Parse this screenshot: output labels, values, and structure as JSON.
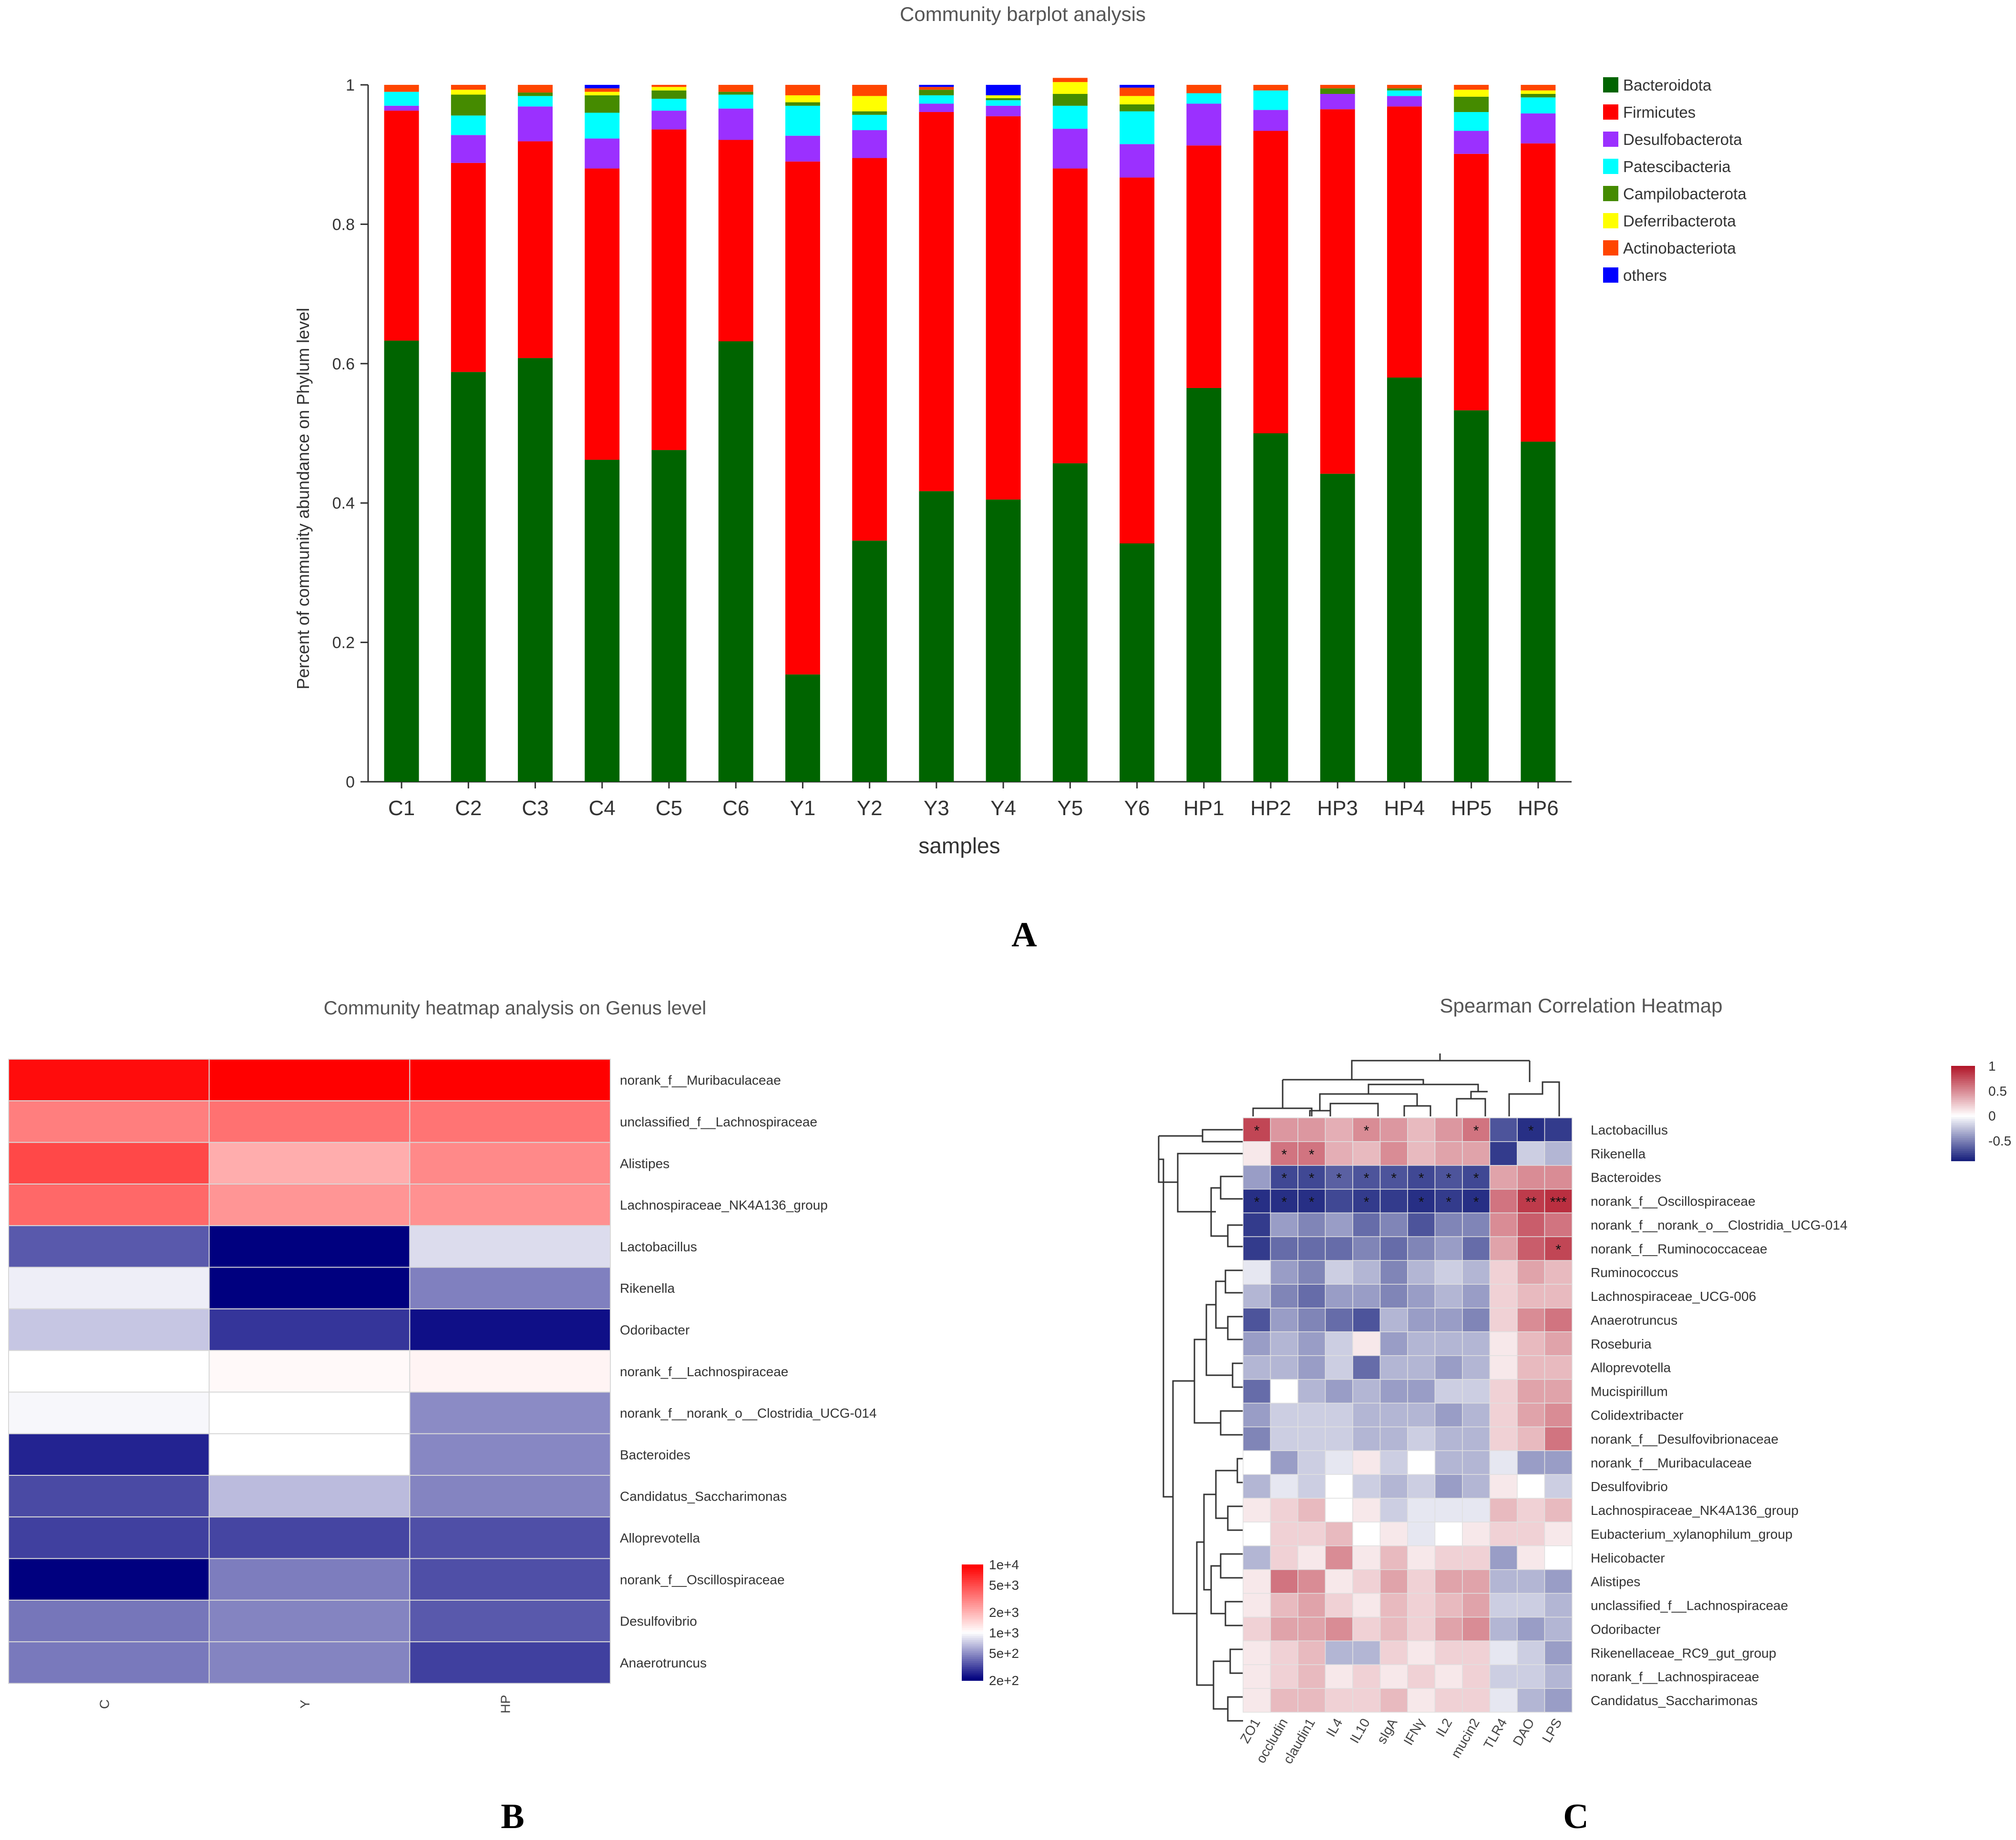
{
  "figure": {
    "panel_labels": [
      "A",
      "B",
      "C"
    ]
  },
  "chart_data": [
    {
      "type": "bar",
      "stacked": true,
      "title": "Community barplot analysis",
      "xlabel": "samples",
      "ylabel": "Percent of community abundance on Phylum level",
      "ylim": [
        0,
        1
      ],
      "yticks": [
        "0",
        "0.2",
        "0.4",
        "0.6",
        "0.8",
        "1"
      ],
      "legend_position": "right",
      "categories": [
        "C1",
        "C2",
        "C3",
        "C4",
        "C5",
        "C6",
        "Y1",
        "Y2",
        "Y3",
        "Y4",
        "Y5",
        "Y6",
        "HP1",
        "HP2",
        "HP3",
        "HP4",
        "HP5",
        "HP6"
      ],
      "series": [
        {
          "name": "Bacteroidota",
          "color": "#006400",
          "values": [
            0.633,
            0.588,
            0.608,
            0.462,
            0.476,
            0.632,
            0.154,
            0.346,
            0.417,
            0.405,
            0.457,
            0.342,
            0.565,
            0.5,
            0.442,
            0.58,
            0.533,
            0.488
          ]
        },
        {
          "name": "Firmicutes",
          "color": "#ff0000",
          "values": [
            0.33,
            0.3,
            0.311,
            0.418,
            0.46,
            0.289,
            0.736,
            0.549,
            0.544,
            0.55,
            0.423,
            0.525,
            0.348,
            0.434,
            0.523,
            0.389,
            0.368,
            0.428
          ]
        },
        {
          "name": "Desulfobacterota",
          "color": "#9b30ff",
          "values": [
            0.007,
            0.04,
            0.05,
            0.043,
            0.027,
            0.045,
            0.037,
            0.04,
            0.012,
            0.015,
            0.057,
            0.048,
            0.06,
            0.03,
            0.022,
            0.015,
            0.033,
            0.043
          ]
        },
        {
          "name": "Patescibacteria",
          "color": "#00ffff",
          "values": [
            0.02,
            0.028,
            0.015,
            0.037,
            0.017,
            0.02,
            0.043,
            0.022,
            0.012,
            0.008,
            0.033,
            0.047,
            0.015,
            0.028,
            0.0,
            0.008,
            0.027,
            0.023
          ]
        },
        {
          "name": "Campilobacterota",
          "color": "#458b00",
          "values": [
            0.0,
            0.03,
            0.005,
            0.025,
            0.012,
            0.004,
            0.005,
            0.005,
            0.008,
            0.003,
            0.017,
            0.01,
            0.0,
            0.0,
            0.008,
            0.003,
            0.022,
            0.005
          ]
        },
        {
          "name": "Deferribacterota",
          "color": "#ffff00",
          "values": [
            0.0,
            0.007,
            0.0,
            0.005,
            0.005,
            0.0,
            0.01,
            0.022,
            0.0,
            0.004,
            0.017,
            0.012,
            0.0,
            0.0,
            0.0,
            0.0,
            0.01,
            0.005
          ]
        },
        {
          "name": "Actinobacteriota",
          "color": "#ff4500",
          "values": [
            0.01,
            0.007,
            0.011,
            0.005,
            0.003,
            0.01,
            0.015,
            0.016,
            0.004,
            0.0,
            0.006,
            0.012,
            0.012,
            0.008,
            0.005,
            0.005,
            0.007,
            0.008
          ]
        },
        {
          "name": "others",
          "color": "#0000ff",
          "values": [
            0.0,
            0.0,
            0.0,
            0.005,
            0.0,
            0.0,
            0.0,
            0.0,
            0.003,
            0.015,
            0.0,
            0.004,
            0.0,
            0.0,
            0.0,
            0.0,
            0.0,
            0.0
          ]
        }
      ]
    },
    {
      "type": "heatmap",
      "title": "Community heatmap analysis on Genus level",
      "columns": [
        "C",
        "Y",
        "HP"
      ],
      "rows": [
        "norank_f__Muribaculaceae",
        "unclassified_f__Lachnospiraceae",
        "Alistipes",
        "Lachnospiraceae_NK4A136_group",
        "Lactobacillus",
        "Rikenella",
        "Odoribacter",
        "norank_f__Lachnospiraceae",
        "norank_f__norank_o__Clostridia_UCG-014",
        "Bacteroides",
        "Candidatus_Saccharimonas",
        "Alloprevotella",
        "norank_f__Oscillospiraceae",
        "Desulfovibrio",
        "Anaerotruncus"
      ],
      "scale": "log",
      "values": [
        [
          9000,
          10000,
          10000
        ],
        [
          3200,
          3600,
          3500
        ],
        [
          5200,
          2100,
          2900
        ],
        [
          3900,
          2600,
          2700
        ],
        [
          350,
          200,
          800
        ],
        [
          900,
          190,
          450
        ],
        [
          700,
          280,
          220
        ],
        [
          1000,
          1060,
          1100
        ],
        [
          950,
          1000,
          480
        ],
        [
          250,
          1000,
          470
        ],
        [
          320,
          650,
          460
        ],
        [
          300,
          310,
          330
        ],
        [
          190,
          440,
          330
        ],
        [
          420,
          460,
          350
        ],
        [
          430,
          460,
          300
        ]
      ],
      "colorbar": {
        "labels": [
          "1e+4",
          "5e+3",
          "2e+3",
          "1e+3",
          "5e+2",
          "2e+2"
        ],
        "colors": [
          "#ff0000",
          "#ffffff",
          "#00007f"
        ]
      }
    },
    {
      "type": "heatmap",
      "title": "Spearman Correlation Heatmap",
      "columns": [
        "ZO1",
        "occludin",
        "claudin1",
        "IL4",
        "IL10",
        "sIgA",
        "IFNγ",
        "IL2",
        "mucin2",
        "TLR4",
        "DAO",
        "LPS"
      ],
      "rows": [
        "Lactobacillus",
        "Rikenella",
        "Bacteroides",
        "norank_f__Oscillospiraceae",
        "norank_f__norank_o__Clostridia_UCG-014",
        "norank_f__Ruminococcaceae",
        "Ruminococcus",
        "Lachnospiraceae_UCG-006",
        "Anaerotruncus",
        "Roseburia",
        "Alloprevotella",
        "Mucispirillum",
        "Colidextribacter",
        "norank_f__Desulfovibrionaceae",
        "norank_f__Muribaculaceae",
        "Desulfovibrio",
        "Lachnospiraceae_NK4A136_group",
        "Eubacterium_xylanophilum_group",
        "Helicobacter",
        "Alistipes",
        "unclassified_f__Lachnospiraceae",
        "Odoribacter",
        "Rikenellaceae_RC9_gut_group",
        "norank_f__Lachnospiraceae",
        "Candidatus_Saccharimonas"
      ],
      "values": [
        [
          0.8,
          0.45,
          0.45,
          0.35,
          0.5,
          0.45,
          0.3,
          0.45,
          0.6,
          -0.7,
          -0.85,
          -0.8
        ],
        [
          0.1,
          0.6,
          0.6,
          0.35,
          0.3,
          0.5,
          0.3,
          0.4,
          0.4,
          -0.8,
          -0.2,
          -0.3
        ],
        [
          -0.4,
          -0.75,
          -0.75,
          -0.65,
          -0.7,
          -0.7,
          -0.75,
          -0.7,
          -0.75,
          0.4,
          0.5,
          0.5
        ],
        [
          -0.85,
          -0.85,
          -0.85,
          -0.75,
          -0.8,
          -0.8,
          -0.85,
          -0.8,
          -0.85,
          0.6,
          0.85,
          0.9
        ],
        [
          -0.8,
          -0.4,
          -0.5,
          -0.4,
          -0.6,
          -0.5,
          -0.7,
          -0.5,
          -0.5,
          0.5,
          0.7,
          0.6
        ],
        [
          -0.8,
          -0.6,
          -0.6,
          -0.6,
          -0.5,
          -0.6,
          -0.5,
          -0.4,
          -0.6,
          0.4,
          0.7,
          0.8
        ],
        [
          -0.1,
          -0.4,
          -0.5,
          -0.2,
          -0.3,
          -0.5,
          -0.3,
          -0.2,
          -0.3,
          0.2,
          0.4,
          0.3
        ],
        [
          -0.3,
          -0.5,
          -0.6,
          -0.4,
          -0.4,
          -0.5,
          -0.4,
          -0.3,
          -0.4,
          0.2,
          0.3,
          0.3
        ],
        [
          -0.7,
          -0.4,
          -0.5,
          -0.6,
          -0.7,
          -0.3,
          -0.4,
          -0.4,
          -0.5,
          0.2,
          0.5,
          0.6
        ],
        [
          -0.4,
          -0.3,
          -0.4,
          -0.2,
          0.1,
          -0.4,
          -0.3,
          -0.3,
          -0.3,
          0.1,
          0.3,
          0.4
        ],
        [
          -0.3,
          -0.3,
          -0.4,
          -0.2,
          -0.6,
          -0.3,
          -0.3,
          -0.4,
          -0.3,
          0.1,
          0.3,
          0.3
        ],
        [
          -0.6,
          0.0,
          -0.3,
          -0.4,
          -0.3,
          -0.4,
          -0.4,
          -0.2,
          -0.2,
          0.2,
          0.4,
          0.4
        ],
        [
          -0.4,
          -0.2,
          -0.2,
          -0.2,
          -0.3,
          -0.3,
          -0.3,
          -0.4,
          -0.3,
          0.2,
          0.4,
          0.5
        ],
        [
          -0.5,
          -0.2,
          -0.2,
          -0.2,
          -0.3,
          -0.3,
          -0.2,
          -0.3,
          -0.3,
          0.2,
          0.3,
          0.6
        ],
        [
          0.0,
          -0.4,
          -0.2,
          -0.1,
          0.1,
          -0.2,
          0.0,
          -0.3,
          -0.3,
          -0.1,
          -0.4,
          -0.4
        ],
        [
          -0.3,
          -0.1,
          -0.2,
          0.0,
          -0.2,
          -0.3,
          -0.2,
          -0.4,
          -0.3,
          0.1,
          0.0,
          -0.2
        ],
        [
          0.1,
          0.2,
          0.3,
          0.0,
          0.1,
          -0.2,
          -0.1,
          -0.1,
          -0.1,
          0.3,
          0.2,
          0.3
        ],
        [
          0.0,
          0.2,
          0.2,
          0.3,
          0.0,
          0.1,
          -0.1,
          0.0,
          0.1,
          0.2,
          0.2,
          0.1
        ],
        [
          -0.3,
          0.2,
          0.1,
          0.5,
          0.1,
          0.3,
          0.1,
          0.2,
          0.2,
          -0.4,
          0.1,
          0.0
        ],
        [
          0.1,
          0.6,
          0.5,
          0.1,
          0.2,
          0.4,
          0.2,
          0.4,
          0.4,
          -0.3,
          -0.3,
          -0.4
        ],
        [
          0.1,
          0.3,
          0.4,
          0.2,
          0.1,
          0.3,
          0.2,
          0.3,
          0.4,
          -0.2,
          -0.2,
          -0.3
        ],
        [
          0.2,
          0.4,
          0.4,
          0.5,
          0.2,
          0.3,
          0.2,
          0.4,
          0.5,
          -0.3,
          -0.4,
          -0.3
        ],
        [
          0.1,
          0.2,
          0.3,
          -0.3,
          -0.3,
          0.2,
          0.1,
          0.2,
          0.2,
          -0.1,
          -0.2,
          -0.4
        ],
        [
          0.1,
          0.2,
          0.3,
          0.1,
          0.2,
          0.1,
          0.2,
          0.1,
          0.2,
          -0.2,
          -0.2,
          -0.3
        ],
        [
          0.1,
          0.3,
          0.3,
          0.2,
          0.2,
          0.3,
          0.1,
          0.2,
          0.2,
          -0.1,
          -0.3,
          -0.4
        ]
      ],
      "significance": [
        [
          "*",
          "",
          "",
          "",
          "*",
          "",
          "",
          "",
          "*",
          "",
          "*",
          ""
        ],
        [
          "",
          "*",
          "*",
          "",
          "",
          "",
          "",
          "",
          "",
          "",
          "",
          ""
        ],
        [
          "",
          "*",
          "*",
          "*",
          "*",
          "*",
          "*",
          "*",
          "*",
          "",
          "",
          ""
        ],
        [
          "*",
          "*",
          "*",
          "",
          "*",
          "",
          "*",
          "*",
          "*",
          "",
          "**",
          "***"
        ],
        [
          "",
          "",
          "",
          "",
          "",
          "",
          "",
          "",
          "",
          "",
          "",
          ""
        ],
        [
          "",
          "",
          "",
          "",
          "",
          "",
          "",
          "",
          "",
          "",
          "",
          "*"
        ],
        [
          "",
          "",
          "",
          "",
          "",
          "",
          "",
          "",
          "",
          "",
          "",
          ""
        ],
        [
          "",
          "",
          "",
          "",
          "",
          "",
          "",
          "",
          "",
          "",
          "",
          ""
        ],
        [
          "",
          "",
          "",
          "",
          "",
          "",
          "",
          "",
          "",
          "",
          "",
          ""
        ],
        [
          "",
          "",
          "",
          "",
          "",
          "",
          "",
          "",
          "",
          "",
          "",
          ""
        ],
        [
          "",
          "",
          "",
          "",
          "",
          "",
          "",
          "",
          "",
          "",
          "",
          ""
        ],
        [
          "",
          "",
          "",
          "",
          "",
          "",
          "",
          "",
          "",
          "",
          "",
          ""
        ],
        [
          "",
          "",
          "",
          "",
          "",
          "",
          "",
          "",
          "",
          "",
          "",
          ""
        ],
        [
          "",
          "",
          "",
          "",
          "",
          "",
          "",
          "",
          "",
          "",
          "",
          ""
        ],
        [
          "",
          "",
          "",
          "",
          "",
          "",
          "",
          "",
          "",
          "",
          "",
          ""
        ],
        [
          "",
          "",
          "",
          "",
          "",
          "",
          "",
          "",
          "",
          "",
          "",
          ""
        ],
        [
          "",
          "",
          "",
          "",
          "",
          "",
          "",
          "",
          "",
          "",
          "",
          ""
        ],
        [
          "",
          "",
          "",
          "",
          "",
          "",
          "",
          "",
          "",
          "",
          "",
          ""
        ],
        [
          "",
          "",
          "",
          "",
          "",
          "",
          "",
          "",
          "",
          "",
          "",
          ""
        ],
        [
          "",
          "",
          "",
          "",
          "",
          "",
          "",
          "",
          "",
          "",
          "",
          ""
        ],
        [
          "",
          "",
          "",
          "",
          "",
          "",
          "",
          "",
          "",
          "",
          "",
          ""
        ],
        [
          "",
          "",
          "",
          "",
          "",
          "",
          "",
          "",
          "",
          "",
          "",
          ""
        ],
        [
          "",
          "",
          "",
          "",
          "",
          "",
          "",
          "",
          "",
          "",
          "",
          ""
        ],
        [
          "",
          "",
          "",
          "",
          "",
          "",
          "",
          "",
          "",
          "",
          "",
          ""
        ],
        [
          "",
          "",
          "",
          "",
          "",
          "",
          "",
          "",
          "",
          "",
          "",
          ""
        ]
      ],
      "colorbar": {
        "ticks": [
          1,
          0.5,
          0,
          -0.5
        ],
        "labels": [
          "1",
          "0.5",
          "0",
          "-0.5"
        ],
        "range": [
          -0.9,
          1
        ],
        "colors": [
          "#b2182b",
          "#ffffff",
          "#1a237e"
        ]
      }
    }
  ]
}
